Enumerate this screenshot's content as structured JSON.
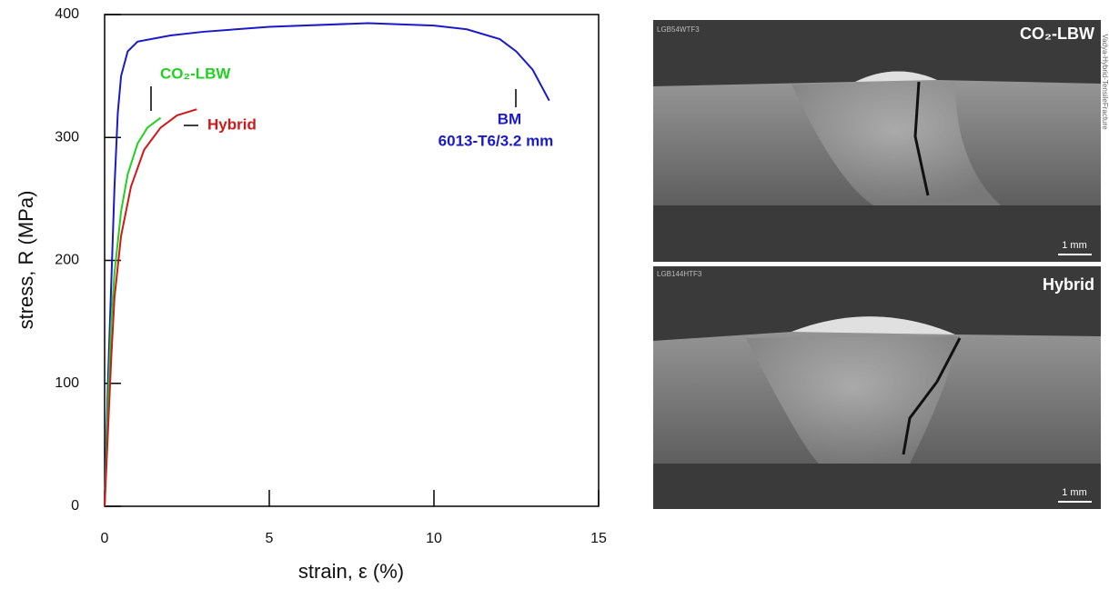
{
  "chart_data": {
    "type": "line",
    "x_label": "strain, ε (%)",
    "y_label": "stress, R (MPa)",
    "xlim": [
      0,
      15
    ],
    "xticks": [
      0,
      5,
      10,
      15
    ],
    "ylim": [
      0,
      400
    ],
    "yticks": [
      0,
      100,
      200,
      300,
      400
    ],
    "series": [
      {
        "name": "BM",
        "color": "#1a1ac8",
        "x": [
          0,
          0.1,
          0.2,
          0.3,
          0.4,
          0.5,
          0.7,
          1,
          2,
          3,
          5,
          8,
          10,
          11,
          12,
          12.5,
          13,
          13.5
        ],
        "values": [
          0,
          100,
          180,
          260,
          320,
          350,
          370,
          378,
          383,
          386,
          390,
          393,
          391,
          388,
          380,
          370,
          355,
          330
        ]
      },
      {
        "name": "CO₂-LBW",
        "color": "#22d022",
        "x": [
          0,
          0.1,
          0.2,
          0.3,
          0.5,
          0.7,
          1,
          1.3,
          1.7
        ],
        "values": [
          0,
          80,
          150,
          190,
          240,
          270,
          295,
          308,
          316
        ]
      },
      {
        "name": "Hybrid",
        "color": "#d01818",
        "x": [
          0,
          0.1,
          0.2,
          0.3,
          0.5,
          0.8,
          1.2,
          1.7,
          2.2,
          2.8
        ],
        "values": [
          0,
          60,
          120,
          170,
          220,
          260,
          290,
          308,
          318,
          323
        ]
      }
    ],
    "annotation": "6013-T6/3.2 mm"
  },
  "panels": [
    {
      "id": "LGB54WTF3",
      "label": "CO₂-LBW",
      "scale": "1 mm",
      "side_text": "Vadya-Hybrid-TensileFracture"
    },
    {
      "id": "LGB144HTF3",
      "label": "Hybrid",
      "scale": "1 mm"
    }
  ]
}
